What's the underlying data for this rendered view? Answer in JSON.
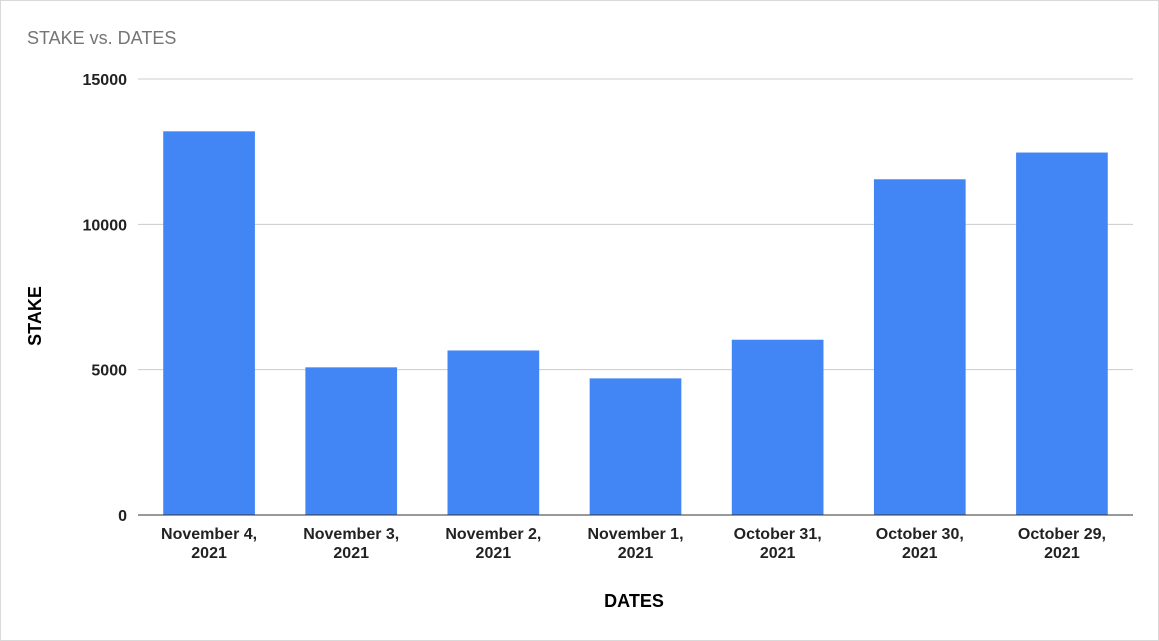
{
  "chart_data": {
    "type": "bar",
    "title": "STAKE vs. DATES",
    "xlabel": "DATES",
    "ylabel": "STAKE",
    "categories": [
      [
        "November 4,",
        "2021"
      ],
      [
        "November 3,",
        "2021"
      ],
      [
        "November 2,",
        "2021"
      ],
      [
        "November 1,",
        "2021"
      ],
      [
        "October 31,",
        "2021"
      ],
      [
        "October 30,",
        "2021"
      ],
      [
        "October 29,",
        "2021"
      ]
    ],
    "values": [
      13200,
      5080,
      5660,
      4700,
      6030,
      11550,
      12470
    ],
    "ylim": [
      0,
      15000
    ],
    "yticks": [
      0,
      5000,
      10000,
      15000
    ],
    "grid": true,
    "bar_color": "#4285f4",
    "grid_color": "#cccccc",
    "axis_color": "#333333"
  }
}
